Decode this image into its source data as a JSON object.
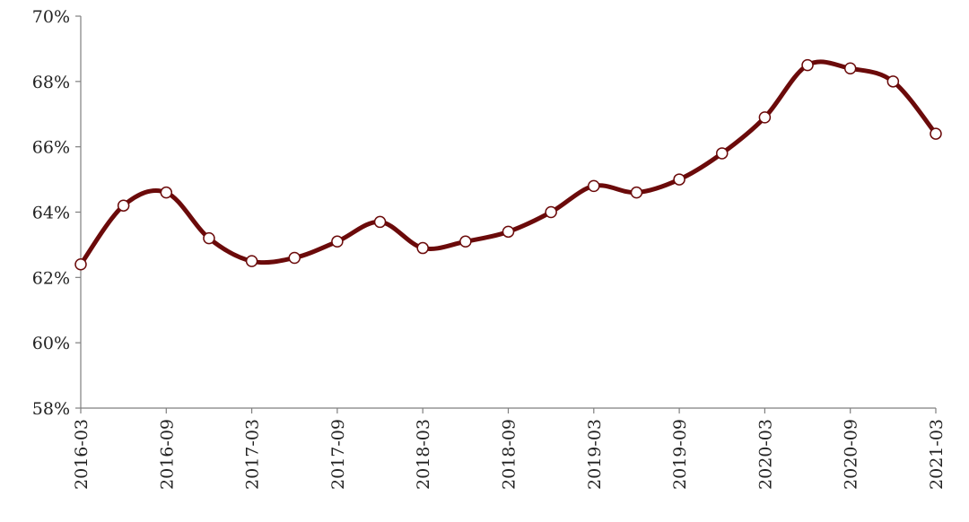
{
  "chart_data": {
    "type": "line",
    "title": "",
    "xlabel": "",
    "ylabel": "",
    "x": [
      "2016-03",
      "2016-06",
      "2016-09",
      "2016-12",
      "2017-03",
      "2017-06",
      "2017-09",
      "2017-12",
      "2018-03",
      "2018-06",
      "2018-09",
      "2018-12",
      "2019-03",
      "2019-06",
      "2019-09",
      "2019-12",
      "2020-03",
      "2020-06",
      "2020-09",
      "2020-12",
      "2021-03"
    ],
    "x_tick_labels": [
      "2016-03",
      "2016-09",
      "2017-03",
      "2017-09",
      "2018-03",
      "2018-09",
      "2019-03",
      "2019-09",
      "2020-03",
      "2020-09",
      "2021-03"
    ],
    "y_tick_labels": [
      "58%",
      "60%",
      "62%",
      "64%",
      "66%",
      "68%",
      "70%"
    ],
    "ylim": [
      58,
      70
    ],
    "y_ticks": [
      58,
      60,
      62,
      64,
      66,
      68,
      70
    ],
    "grid": false,
    "series": [
      {
        "values": [
          62.4,
          64.2,
          64.6,
          63.2,
          62.5,
          62.6,
          63.1,
          63.7,
          62.9,
          63.1,
          63.4,
          64.0,
          64.8,
          64.6,
          65.0,
          65.8,
          66.9,
          68.5,
          68.4,
          68.0,
          66.4
        ]
      }
    ],
    "colors": {
      "line": "#6b0a0a",
      "marker_fill": "#ffffff",
      "marker_stroke": "#6b0a0a",
      "axis": "#7f7f7f"
    }
  }
}
